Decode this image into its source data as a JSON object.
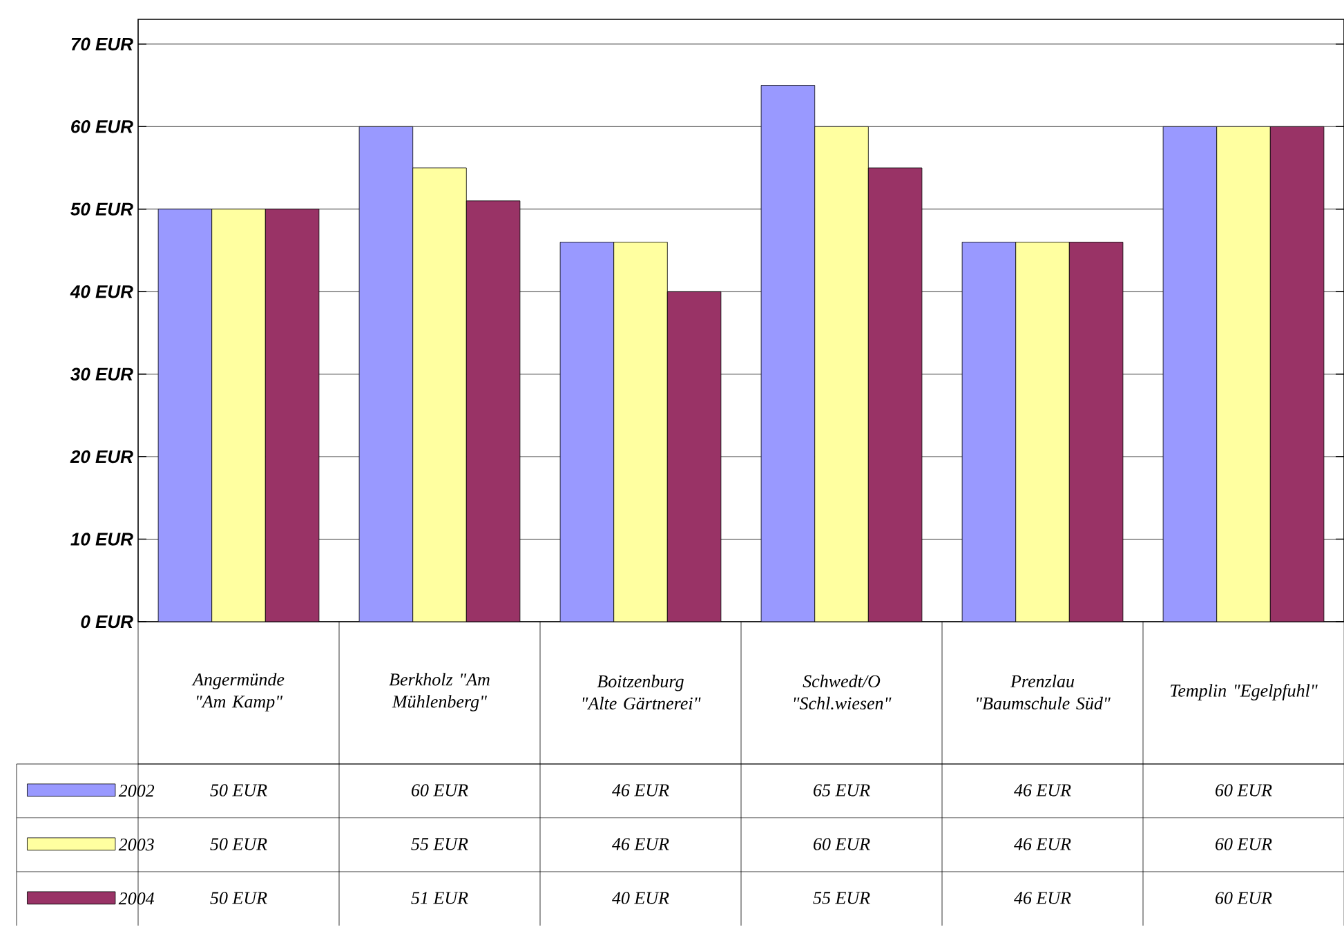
{
  "chart_data": {
    "type": "bar",
    "categories": [
      "Angermünde \"Am Kamp\"",
      "Berkholz \"Am Mühlenberg\"",
      "Boitzenburg \"Alte Gärtnerei\"",
      "Schwedt/O \"Schl.wiesen\"",
      "Prenzlau \"Baumschule Süd\"",
      "Templin \"Egelpfuhl\""
    ],
    "series": [
      {
        "name": "2002",
        "color": "#9999ff",
        "values": [
          50,
          60,
          46,
          65,
          46,
          60
        ],
        "value_labels": [
          "50 EUR",
          "60 EUR",
          "46 EUR",
          "65 EUR",
          "46 EUR",
          "60 EUR"
        ]
      },
      {
        "name": "2003",
        "color": "#ffffa0",
        "values": [
          50,
          55,
          46,
          60,
          46,
          60
        ],
        "value_labels": [
          "50 EUR",
          "55 EUR",
          "46 EUR",
          "60 EUR",
          "46 EUR",
          "60 EUR"
        ]
      },
      {
        "name": "2004",
        "color": "#993366",
        "values": [
          50,
          51,
          40,
          55,
          46,
          60
        ],
        "value_labels": [
          "50 EUR",
          "51 EUR",
          "40 EUR",
          "55 EUR",
          "46 EUR",
          "60 EUR"
        ]
      }
    ],
    "ylim": [
      0,
      73
    ],
    "yticks": [
      {
        "value": 0,
        "label": "0 EUR"
      },
      {
        "value": 10,
        "label": "10 EUR"
      },
      {
        "value": 20,
        "label": "20 EUR"
      },
      {
        "value": 30,
        "label": "30 EUR"
      },
      {
        "value": 40,
        "label": "40 EUR"
      },
      {
        "value": 50,
        "label": "50 EUR"
      },
      {
        "value": 60,
        "label": "60 EUR"
      },
      {
        "value": 70,
        "label": "70 EUR"
      }
    ],
    "grid": "y",
    "legend": "bottom left"
  }
}
